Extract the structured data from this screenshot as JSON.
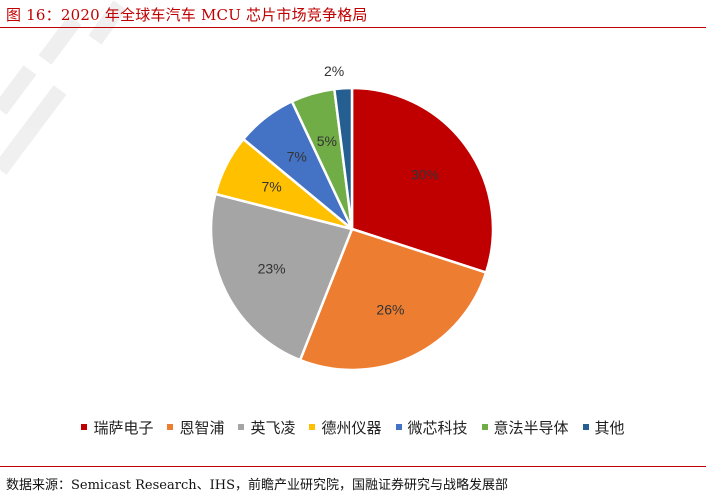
{
  "figure": {
    "title": "图 16：2020 年全球车汽车 MCU 芯片市场竞争格局",
    "source": "数据来源：Semicast Research、IHS，前瞻产业研究院，国融证券研究与战略发展部"
  },
  "chart_data": {
    "type": "pie",
    "title": "",
    "categories": [
      "瑞萨电子",
      "恩智浦",
      "英飞凌",
      "德州仪器",
      "微芯科技",
      "意法半导体",
      "其他"
    ],
    "values": [
      30,
      26,
      23,
      7,
      7,
      5,
      2
    ],
    "labels": [
      "30%",
      "26%",
      "23%",
      "7%",
      "7%",
      "5%",
      "2%"
    ],
    "colors": [
      "#c00000",
      "#ed7d31",
      "#a5a5a5",
      "#ffc000",
      "#4472c4",
      "#70ad47",
      "#255e91"
    ],
    "legend_position": "bottom",
    "start_angle": "12 o'clock",
    "direction": "clockwise"
  }
}
